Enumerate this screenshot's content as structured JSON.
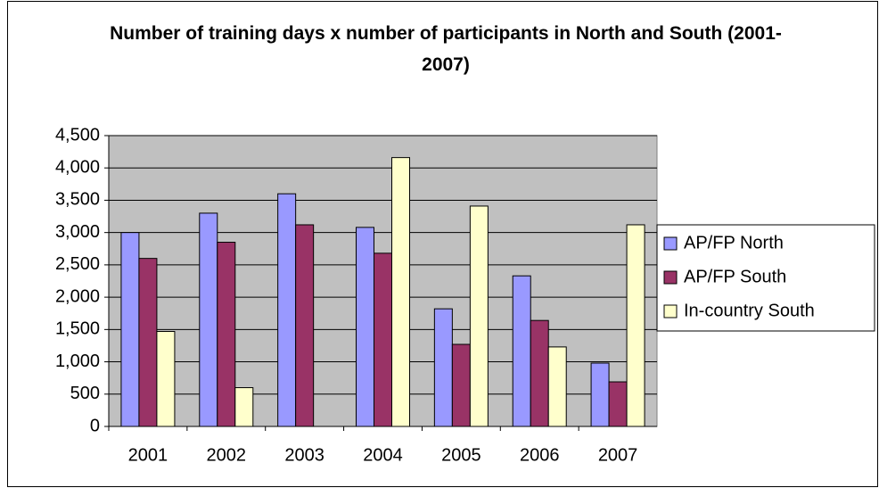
{
  "chart_data": {
    "type": "bar",
    "title": "Number of training days x number of participants in North and South (2001-2007)",
    "categories": [
      "2001",
      "2002",
      "2003",
      "2004",
      "2005",
      "2006",
      "2007"
    ],
    "series": [
      {
        "name": "AP/FP North",
        "color": "#9999ff",
        "values": [
          3000,
          3300,
          3600,
          3080,
          1820,
          2330,
          980
        ]
      },
      {
        "name": "AP/FP South",
        "color": "#993366",
        "values": [
          2600,
          2850,
          3120,
          2680,
          1270,
          1640,
          690
        ]
      },
      {
        "name": "In-country South",
        "color": "#ffffcc",
        "values": [
          1470,
          600,
          0,
          4160,
          3410,
          1230,
          3120
        ]
      }
    ],
    "ylim": [
      0,
      4500
    ],
    "yticks": [
      0,
      500,
      {
        "value": 1000,
        "label": "1,000"
      },
      {
        "value": 1500,
        "label": "1,500"
      },
      {
        "value": 2000,
        "label": "2,000"
      },
      {
        "value": 2500,
        "label": "2,500"
      },
      {
        "value": 3000,
        "label": "3,000"
      },
      {
        "value": 3500,
        "label": "3,500"
      },
      {
        "value": 4000,
        "label": "4,000"
      },
      {
        "value": 4500,
        "label": "4,500"
      }
    ],
    "grid": true,
    "legend": "right",
    "plot_background": "#c0c0c0"
  }
}
